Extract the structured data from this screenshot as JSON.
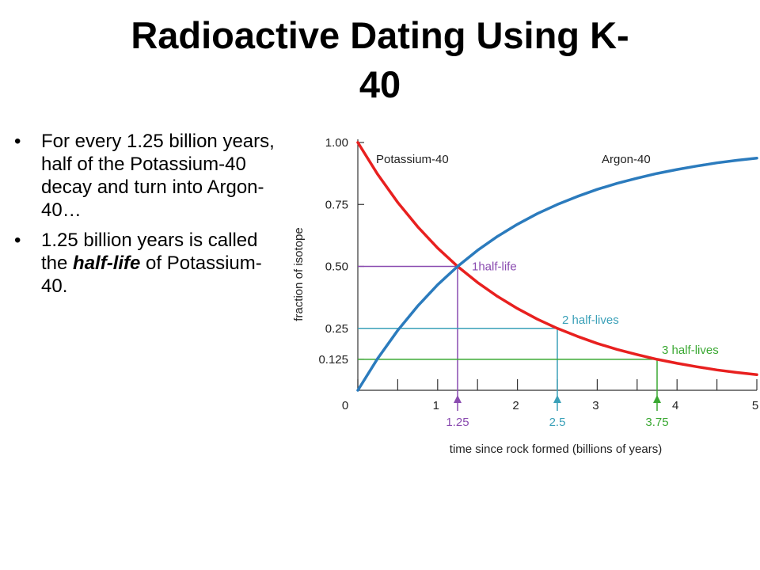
{
  "slide": {
    "title_line1": "Radioactive Dating Using K-",
    "title_line2": "40"
  },
  "bullets": [
    {
      "text": "For every 1.25 billion years, half of the Potassium-40 decay and turn into Argon-40…"
    },
    {
      "pre": "1.25 billion years is called the ",
      "emph": "half-life",
      "post": " of Potassium-40."
    }
  ],
  "bullet_symbol": "•",
  "chart_data": {
    "type": "line",
    "xlabel": "time since rock formed (billions of years)",
    "ylabel": "fraction of isotope",
    "xlim": [
      0,
      5
    ],
    "ylim": [
      0,
      1
    ],
    "x_ticks": [
      "0",
      "1",
      "2",
      "3",
      "4",
      "5"
    ],
    "y_ticks": [
      {
        "value": 1.0,
        "label": "1.00"
      },
      {
        "value": 0.75,
        "label": "0.75"
      },
      {
        "value": 0.5,
        "label": "0.50"
      },
      {
        "value": 0.25,
        "label": "0.25"
      },
      {
        "value": 0.125,
        "label": "0.125"
      }
    ],
    "series": [
      {
        "name": "Potassium-40",
        "color": "#e8201f",
        "x": [
          0,
          0.25,
          0.5,
          0.75,
          1.0,
          1.25,
          1.5,
          1.75,
          2.0,
          2.25,
          2.5,
          2.75,
          3.0,
          3.25,
          3.5,
          3.75,
          4.0,
          4.25,
          4.5,
          4.75,
          5.0
        ],
        "values": [
          1.0,
          0.871,
          0.758,
          0.66,
          0.574,
          0.5,
          0.435,
          0.379,
          0.33,
          0.287,
          0.25,
          0.218,
          0.189,
          0.165,
          0.144,
          0.125,
          0.109,
          0.095,
          0.082,
          0.072,
          0.063
        ]
      },
      {
        "name": "Argon-40",
        "color": "#2b7bbd",
        "x": [
          0,
          0.25,
          0.5,
          0.75,
          1.0,
          1.25,
          1.5,
          1.75,
          2.0,
          2.25,
          2.5,
          2.75,
          3.0,
          3.25,
          3.5,
          3.75,
          4.0,
          4.25,
          4.5,
          4.75,
          5.0
        ],
        "values": [
          0.0,
          0.129,
          0.242,
          0.34,
          0.426,
          0.5,
          0.565,
          0.621,
          0.67,
          0.713,
          0.75,
          0.782,
          0.811,
          0.835,
          0.856,
          0.875,
          0.891,
          0.905,
          0.918,
          0.928,
          0.937
        ]
      }
    ],
    "half_life_markers": [
      {
        "x": 1.25,
        "y": 0.5,
        "label": "1half-life",
        "x_label": "1.25",
        "color": "#8a4bb0"
      },
      {
        "x": 2.5,
        "y": 0.25,
        "label": "2 half-lives",
        "x_label": "2.5",
        "color": "#3aa0b8"
      },
      {
        "x": 3.75,
        "y": 0.125,
        "label": "3 half-lives",
        "x_label": "3.75",
        "color": "#3aa832"
      }
    ]
  }
}
